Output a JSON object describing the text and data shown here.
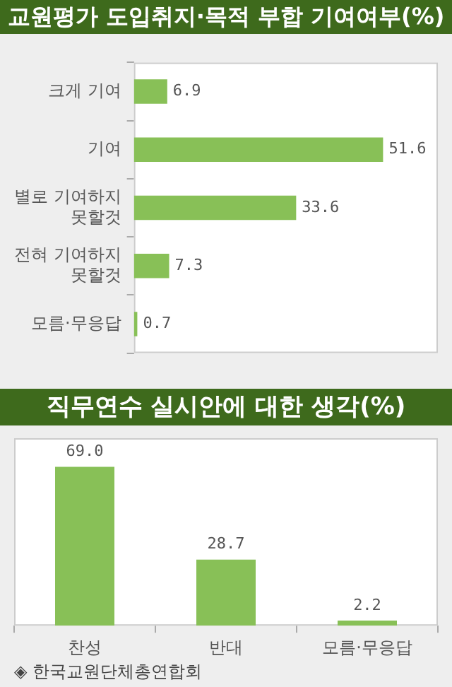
{
  "chart_data": [
    {
      "type": "bar",
      "title": "교원평가 도입취지·목적 부합 기여여부(%)",
      "orientation": "horizontal",
      "categories": [
        "크게 기여",
        "기여",
        "별로 기여하지 못할것",
        "전혀 기여하지 못할것",
        "모름·무응답"
      ],
      "values": [
        6.9,
        51.6,
        33.6,
        7.3,
        0.7
      ],
      "value_labels": [
        "6.9",
        "51.6",
        "33.6",
        "7.3",
        "0.7"
      ],
      "color": "#88c057"
    },
    {
      "type": "bar",
      "title": "직무연수 실시안에 대한 생각(%)",
      "categories": [
        "찬성",
        "반대",
        "모름·무응답"
      ],
      "values": [
        69.0,
        28.7,
        2.2
      ],
      "value_labels": [
        "69.0",
        "28.7",
        "2.2"
      ],
      "color": "#88c057",
      "annotations": [
        "◈ 한국교원단체총연합회"
      ]
    }
  ]
}
